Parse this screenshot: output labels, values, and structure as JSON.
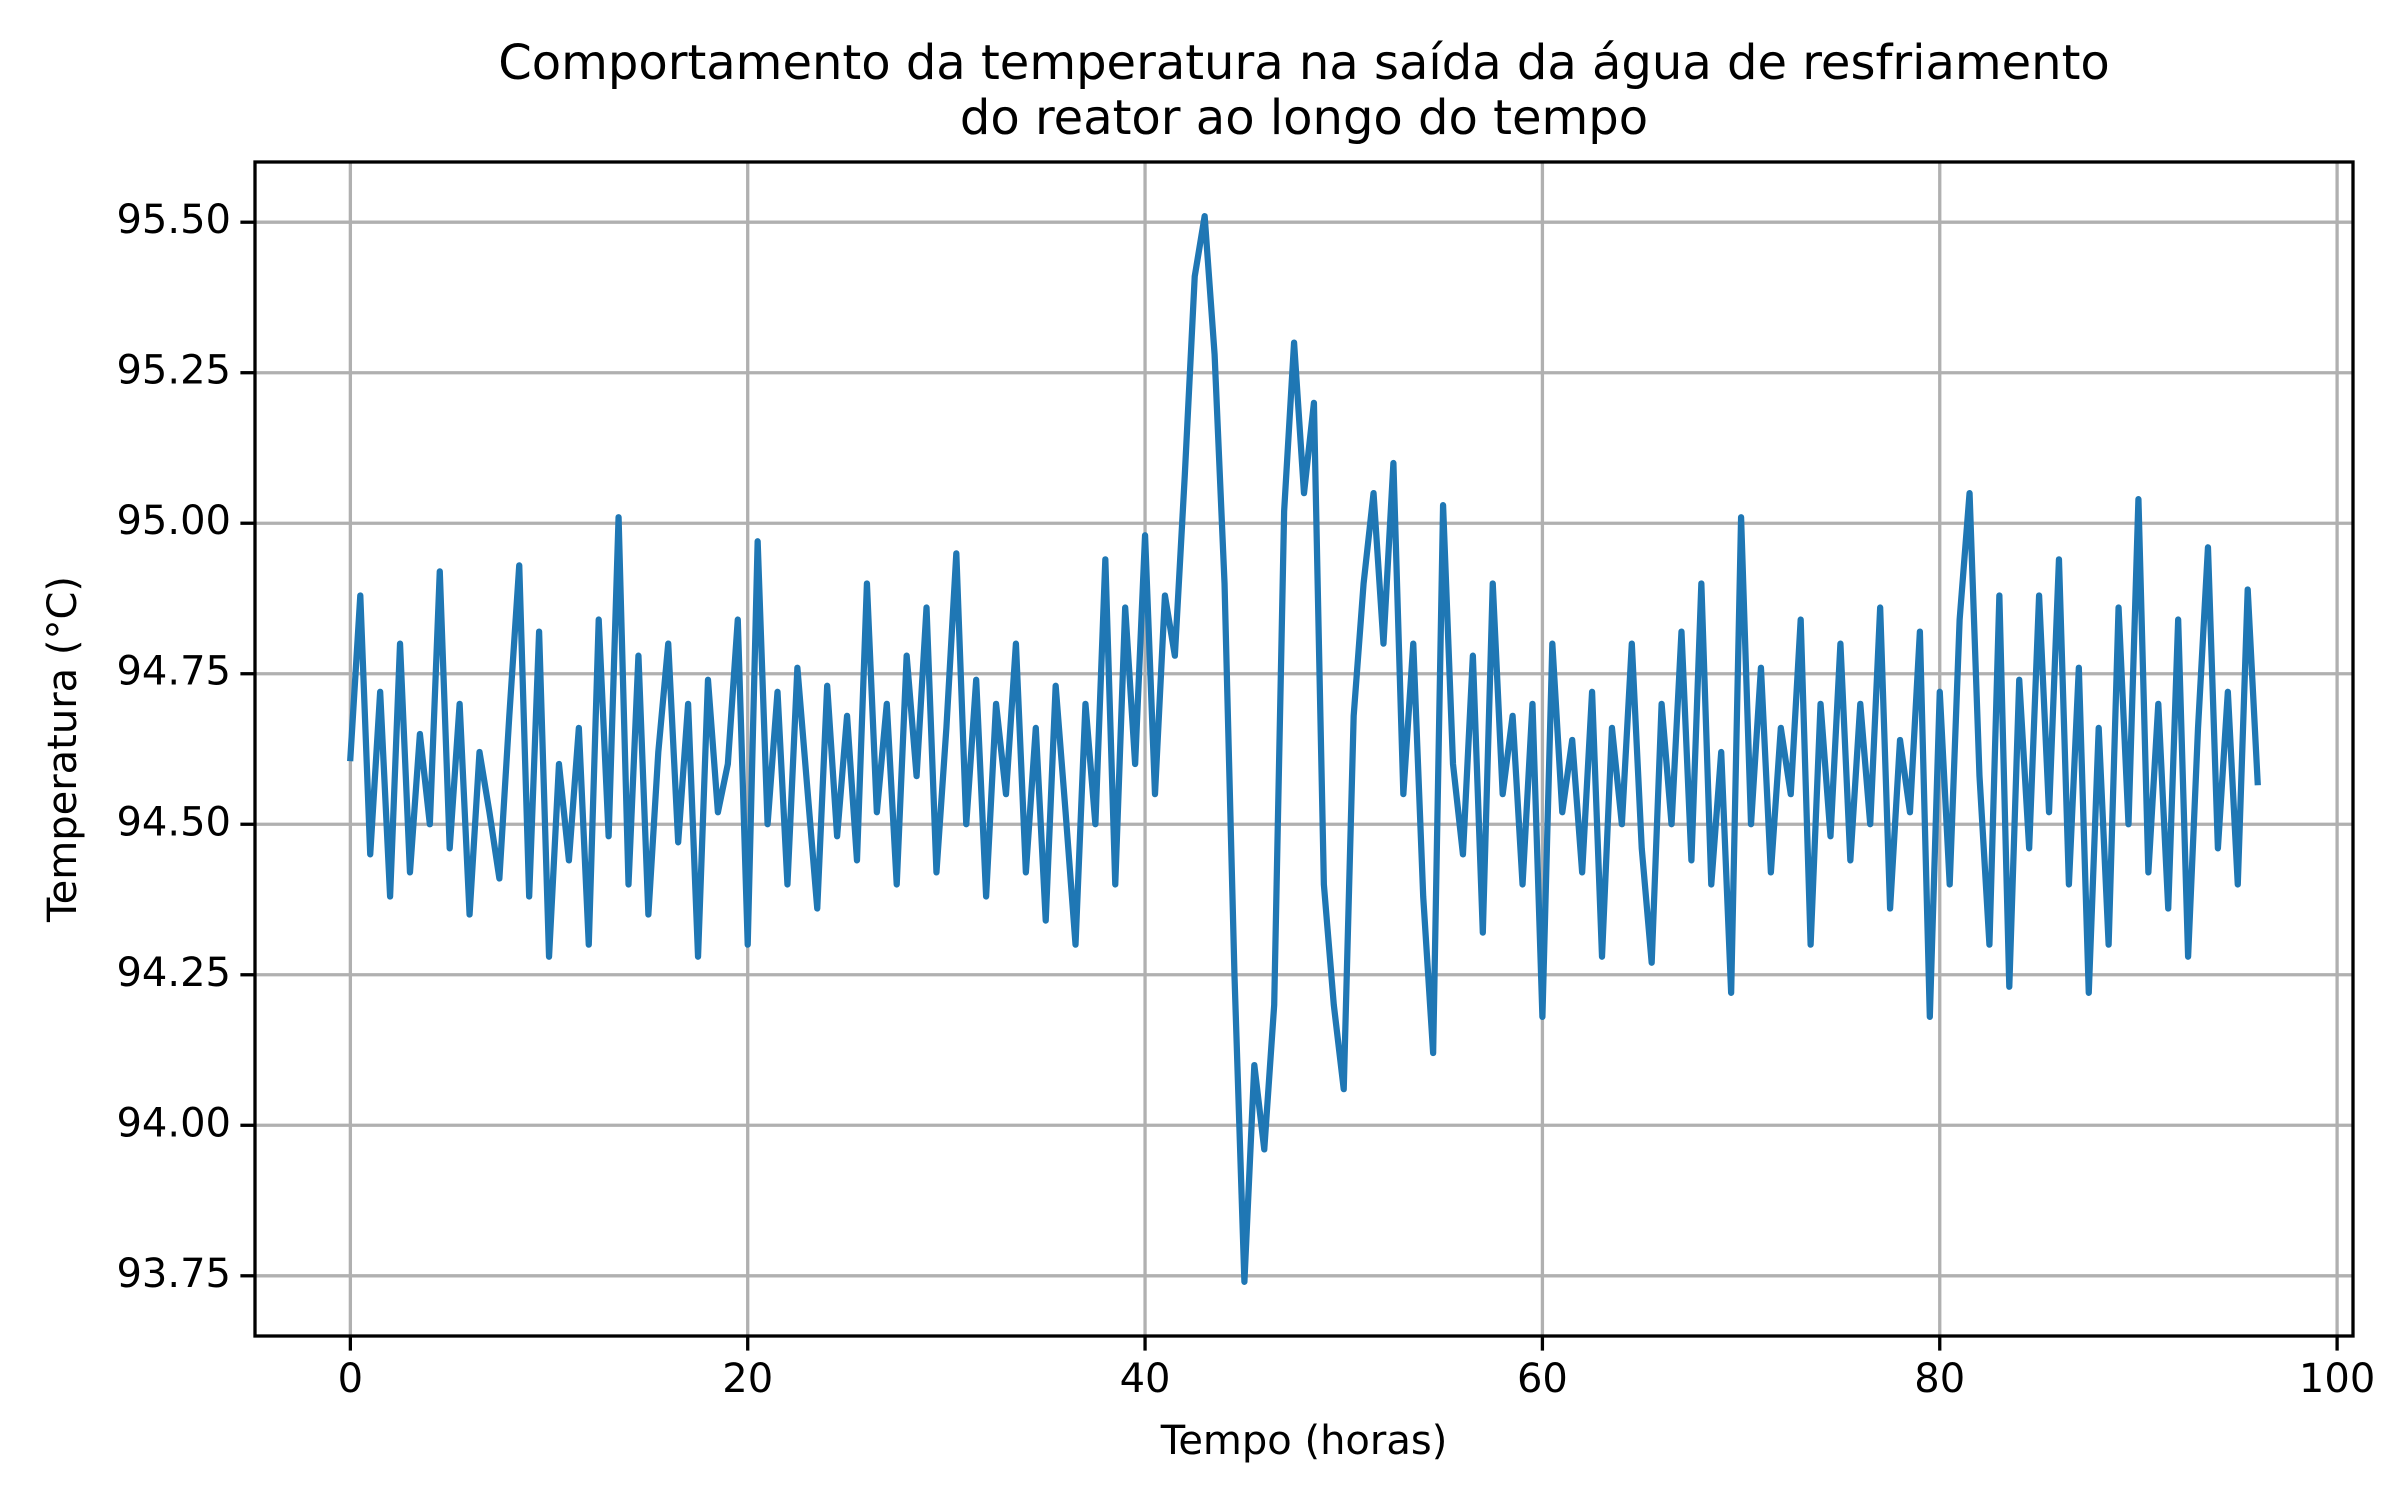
{
  "chart_data": {
    "type": "line",
    "title": "Comportamento da temperatura na saída da água de resfriamento\ndo reator ao longo do tempo",
    "xlabel": "Tempo (horas)",
    "ylabel": "Temperatura (°C)",
    "color": "#1f77b4",
    "grid": true,
    "xlim": [
      -4.8,
      100.8
    ],
    "xticks": [
      0,
      20,
      40,
      60,
      80,
      100
    ],
    "ylim": [
      93.65,
      95.6
    ],
    "yticks": [
      93.75,
      {
        "value": 94,
        "label": "94.00"
      },
      94.25,
      {
        "value": 94.5,
        "label": "94.50"
      },
      94.75,
      {
        "value": 95,
        "label": "95.00"
      },
      95.25,
      {
        "value": 95.5,
        "label": "95.50"
      }
    ],
    "x": [
      0,
      0.5,
      1,
      1.5,
      2,
      2.5,
      3,
      3.5,
      4,
      4.5,
      5,
      5.5,
      6,
      6.5,
      7,
      7.5,
      8,
      8.5,
      9,
      9.5,
      10,
      10.5,
      11,
      11.5,
      12,
      12.5,
      13,
      13.5,
      14,
      14.5,
      15,
      15.5,
      16,
      16.5,
      17,
      17.5,
      18,
      18.5,
      19,
      19.5,
      20,
      20.5,
      21,
      21.5,
      22,
      22.5,
      23,
      23.5,
      24,
      24.5,
      25,
      25.5,
      26,
      26.5,
      27,
      27.5,
      28,
      28.5,
      29,
      29.5,
      30,
      30.5,
      31,
      31.5,
      32,
      32.5,
      33,
      33.5,
      34,
      34.5,
      35,
      35.5,
      36,
      36.5,
      37,
      37.5,
      38,
      38.5,
      39,
      39.5,
      40,
      40.5,
      41,
      41.5,
      42,
      42.5,
      43,
      43.5,
      44,
      44.5,
      45,
      45.5,
      46,
      46.5,
      47,
      47.5,
      48,
      48.5,
      49,
      49.5,
      50,
      50.5,
      51,
      51.5,
      52,
      52.5,
      53,
      53.5,
      54,
      54.5,
      55,
      55.5,
      56,
      56.5,
      57,
      57.5,
      58,
      58.5,
      59,
      59.5,
      60,
      60.5,
      61,
      61.5,
      62,
      62.5,
      63,
      63.5,
      64,
      64.5,
      65,
      65.5,
      66,
      66.5,
      67,
      67.5,
      68,
      68.5,
      69,
      69.5,
      70,
      70.5,
      71,
      71.5,
      72,
      72.5,
      73,
      73.5,
      74,
      74.5,
      75,
      75.5,
      76,
      76.5,
      77,
      77.5,
      78,
      78.5,
      79,
      79.5,
      80,
      80.5,
      81,
      81.5,
      82,
      82.5,
      83,
      83.5,
      84,
      84.5,
      85,
      85.5,
      86,
      86.5,
      87,
      87.5,
      88,
      88.5,
      89,
      89.5,
      90,
      90.5,
      91,
      91.5,
      92,
      92.5,
      93,
      93.5,
      94,
      94.5,
      95,
      95.5,
      96
    ],
    "values": [
      94.61,
      94.88,
      94.45,
      94.72,
      94.38,
      94.8,
      94.42,
      94.65,
      94.5,
      94.92,
      94.46,
      94.7,
      94.35,
      94.62,
      94.52,
      94.41,
      94.68,
      94.93,
      94.38,
      94.82,
      94.28,
      94.6,
      94.44,
      94.66,
      94.3,
      94.84,
      94.48,
      95.01,
      94.4,
      94.78,
      94.35,
      94.62,
      94.8,
      94.47,
      94.7,
      94.28,
      94.74,
      94.52,
      94.6,
      94.84,
      94.3,
      94.97,
      94.5,
      94.72,
      94.4,
      94.76,
      94.56,
      94.36,
      94.73,
      94.48,
      94.68,
      94.44,
      94.9,
      94.52,
      94.7,
      94.4,
      94.78,
      94.58,
      94.86,
      94.42,
      94.66,
      94.95,
      94.5,
      94.74,
      94.38,
      94.7,
      94.55,
      94.8,
      94.42,
      94.66,
      94.34,
      94.73,
      94.52,
      94.3,
      94.7,
      94.5,
      94.94,
      94.4,
      94.86,
      94.6,
      94.98,
      94.55,
      94.88,
      94.78,
      95.08,
      95.41,
      95.51,
      95.28,
      94.9,
      94.25,
      93.74,
      94.1,
      93.96,
      94.2,
      95.02,
      95.3,
      95.05,
      95.2,
      94.4,
      94.2,
      94.06,
      94.68,
      94.9,
      95.05,
      94.8,
      95.1,
      94.55,
      94.8,
      94.38,
      94.12,
      95.03,
      94.6,
      94.45,
      94.78,
      94.32,
      94.9,
      94.55,
      94.68,
      94.4,
      94.7,
      94.18,
      94.8,
      94.52,
      94.64,
      94.42,
      94.72,
      94.28,
      94.66,
      94.5,
      94.8,
      94.46,
      94.27,
      94.7,
      94.5,
      94.82,
      94.44,
      94.9,
      94.4,
      94.62,
      94.22,
      95.01,
      94.5,
      94.76,
      94.42,
      94.66,
      94.55,
      94.84,
      94.3,
      94.7,
      94.48,
      94.8,
      94.44,
      94.7,
      94.5,
      94.86,
      94.36,
      94.64,
      94.52,
      94.82,
      94.18,
      94.72,
      94.4,
      94.84,
      95.05,
      94.58,
      94.3,
      94.88,
      94.23,
      94.74,
      94.46,
      94.88,
      94.52,
      94.94,
      94.4,
      94.76,
      94.22,
      94.66,
      94.3,
      94.86,
      94.5,
      95.04,
      94.42,
      94.7,
      94.36,
      94.84,
      94.28,
      94.66,
      94.96,
      94.46,
      94.72,
      94.4,
      94.89,
      94.57
    ]
  }
}
